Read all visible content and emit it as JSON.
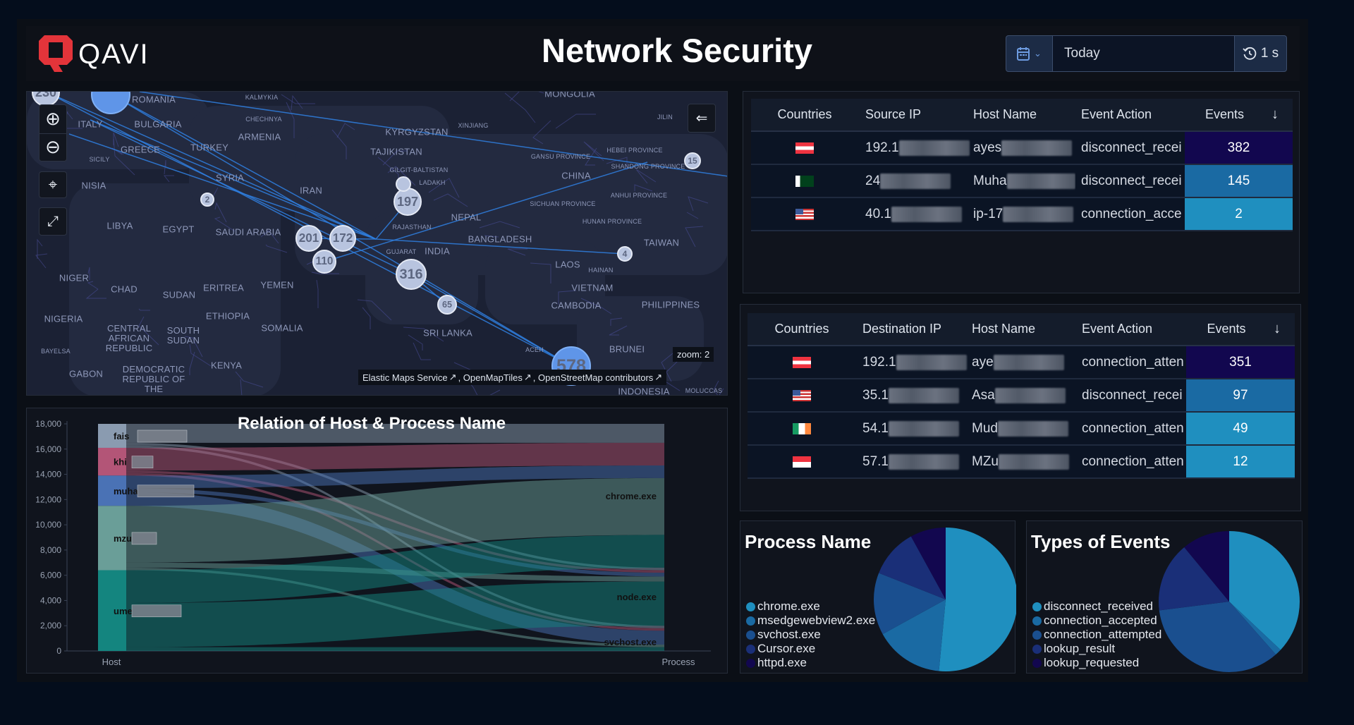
{
  "header": {
    "brand": "QAVI",
    "title": "Network Security",
    "date_range": "Today",
    "refresh_interval": "1 s",
    "icons": [
      "calendar-icon",
      "chevron-down-icon",
      "refresh-clock-icon"
    ]
  },
  "colors": {
    "accent": "#1f8fbf",
    "brand_red": "#e3343a",
    "scale": [
      "#1f8fbf",
      "#1a6aa3",
      "#1a4f8f",
      "#1a2f78",
      "#12074f"
    ]
  },
  "map": {
    "labels": [
      "ROMANIA",
      "KALMYKIA",
      "MONGOLIA",
      "ITALY",
      "BULGARIA",
      "CHECHNYA",
      "ARMENIA",
      "KYRGYZSTAN",
      "XINJIANG",
      "GREECE",
      "TURKEY",
      "TAJIKISTAN",
      "GANSU PROVINCE",
      "HEBEI PROVINCE",
      "SHANDONG PROVINCE",
      "SICILY",
      "SYRIA",
      "GILGIT-BALTISTAN",
      "LADAKH",
      "CHINA",
      "IRAN",
      "SICHUAN PROVINCE",
      "ANHUI PROVINCE",
      "NEPAL",
      "LIBYA",
      "EGYPT",
      "SAUDI ARABIA",
      "RAJASTHAN",
      "HUNAN PROVINCE",
      "BANGLADESH",
      "TAIWAN",
      "GUJARAT",
      "INDIA",
      "LAOS",
      "HAINAN",
      "NIGER",
      "CHAD",
      "ERITREA",
      "YEMEN",
      "SUDAN",
      "VIETNAM",
      "CAMBODIA",
      "PHILIPPINES",
      "SRI LANKA",
      "NIGERIA",
      "CENTRAL AFRICAN REPUBLIC",
      "SOUTH SUDAN",
      "ETHIOPIA",
      "SOMALIA",
      "BAYELSA",
      "KENYA",
      "BRUNEI",
      "DEMOCRATIC REPUBLIC OF THE",
      "GABON",
      "INDONESIA",
      "MOLUCCAS",
      "ACEH",
      "NISIA",
      "JILIN"
    ],
    "clusters": [
      "230",
      "",
      "2",
      "197",
      "",
      "201",
      "172",
      "110",
      "316",
      "65",
      "4",
      "15",
      "578"
    ],
    "zoom_label": "zoom: 2",
    "attribution": [
      "Elastic Maps Service",
      ", OpenMapTiles",
      ", OpenStreetMap contributors"
    ]
  },
  "source_table": {
    "headers": [
      "Countries",
      "Source IP",
      "Host Name",
      "Event Action",
      "Events"
    ],
    "rows": [
      {
        "country": "austria",
        "ip": "192.1",
        "host": "ayes",
        "action": "disconnect_recei",
        "events": "382",
        "color": "#12074f"
      },
      {
        "country": "pakistan",
        "ip": "24",
        "host": "Muha",
        "action": "disconnect_recei",
        "events": "145",
        "color": "#1a6aa3"
      },
      {
        "country": "usa",
        "ip": "40.1",
        "host": "ip-17",
        "action": "connection_acce",
        "events": "2",
        "color": "#1f8fbf"
      }
    ]
  },
  "dest_table": {
    "headers": [
      "Countries",
      "Destination IP",
      "Host Name",
      "Event Action",
      "Events"
    ],
    "rows": [
      {
        "country": "austria",
        "ip": "192.1",
        "host": "aye",
        "action": "connection_atten",
        "events": "351",
        "color": "#12074f"
      },
      {
        "country": "usa",
        "ip": "35.1",
        "host": "Asa",
        "action": "disconnect_recei",
        "events": "97",
        "color": "#1a6aa3"
      },
      {
        "country": "ireland",
        "ip": "54.1",
        "host": "Mud",
        "action": "connection_atten",
        "events": "49",
        "color": "#1f8fbf"
      },
      {
        "country": "singapore",
        "ip": "57.1",
        "host": "MZu",
        "action": "connection_atten",
        "events": "12",
        "color": "#1f8fbf"
      }
    ]
  },
  "chart_data": [
    {
      "type": "sankey",
      "title": "Relation of Host & Process Name",
      "xlabels": [
        "Host",
        "Process"
      ],
      "yticks": [
        "0",
        "2,000",
        "4,000",
        "6,000",
        "8,000",
        "10,000",
        "12,000",
        "14,000",
        "16,000",
        "18,000"
      ],
      "ylim": [
        0,
        18000
      ],
      "sources": [
        {
          "name": "fais",
          "color": "#8a9bb0"
        },
        {
          "name": "khi",
          "color": "#b35577"
        },
        {
          "name": "muha",
          "color": "#4a72b5"
        },
        {
          "name": "mzu",
          "color": "#6a9e98"
        },
        {
          "name": "ume",
          "color": "#14857f"
        }
      ],
      "targets": [
        "chrome.exe",
        "node.exe",
        "svchost.exe"
      ],
      "flows": [
        [
          1500,
          200,
          200
        ],
        [
          1800,
          200,
          200
        ],
        [
          1000,
          300,
          1100
        ],
        [
          4500,
          400,
          200
        ],
        [
          2600,
          3500,
          300
        ]
      ]
    },
    {
      "type": "pie",
      "title": "Process Name",
      "labels": [
        "chrome.exe",
        "msedgewebview2.exe",
        "svchost.exe",
        "Cursor.exe",
        "httpd.exe"
      ],
      "values": [
        51.5,
        15.5,
        14,
        11,
        8
      ],
      "colors": [
        "#1f8fbf",
        "#1a6aa3",
        "#1a4f8f",
        "#1a2f78",
        "#12074f"
      ]
    },
    {
      "type": "pie",
      "title": "Types of Events",
      "labels": [
        "disconnect_received",
        "connection_accepted",
        "connection_attempted",
        "lookup_result",
        "lookup_requested"
      ],
      "values": [
        37,
        1.5,
        34.5,
        16,
        11
      ],
      "colors": [
        "#1f8fbf",
        "#1a6aa3",
        "#1a4f8f",
        "#1a2f78",
        "#12074f"
      ]
    }
  ]
}
